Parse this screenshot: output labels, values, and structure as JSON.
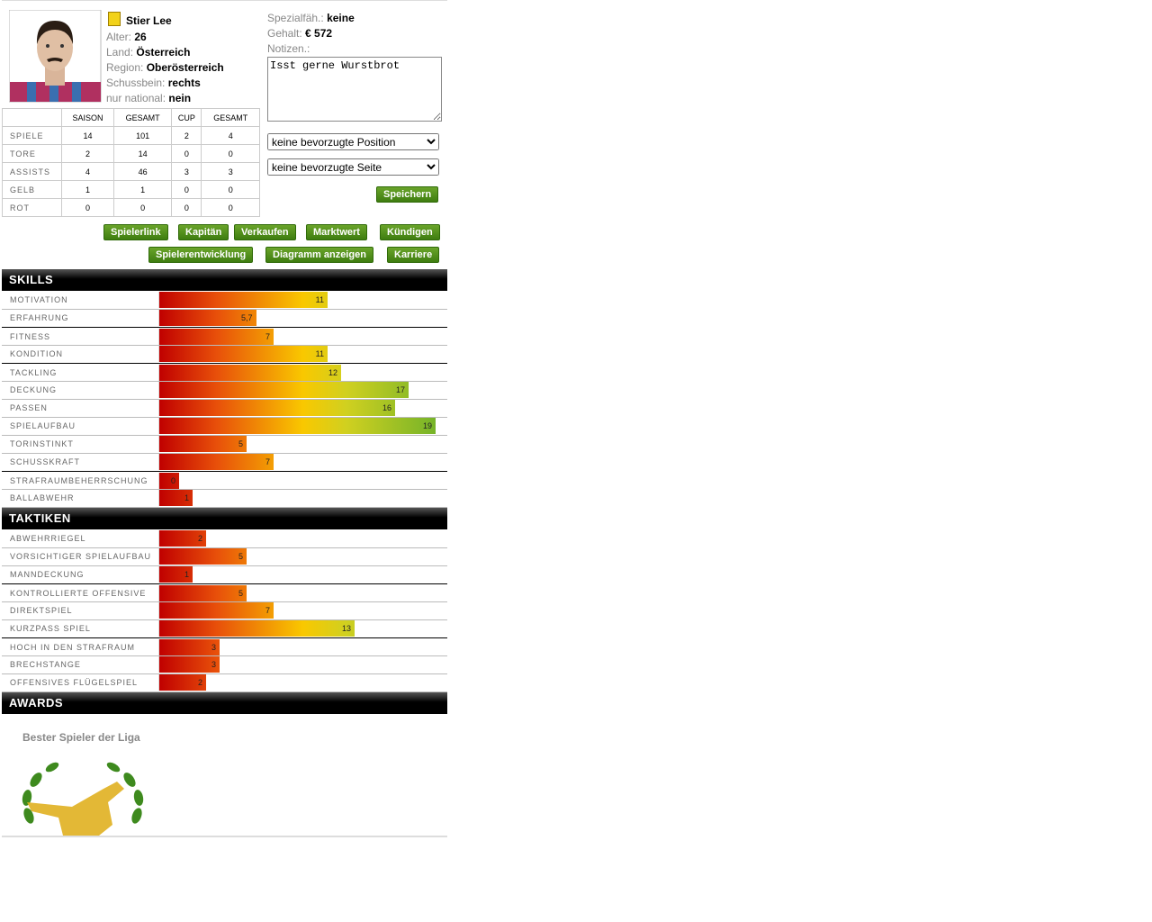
{
  "player": {
    "name": "Stier Lee",
    "info": [
      {
        "label": "Alter:",
        "value": "26"
      },
      {
        "label": "Land:",
        "value": "Österreich"
      },
      {
        "label": "Region:",
        "value": "Oberösterreich"
      },
      {
        "label": "Schussbein:",
        "value": "rechts"
      },
      {
        "label": "nur national:",
        "value": "nein"
      }
    ],
    "extra": [
      {
        "label": "Spezialfäh.:",
        "value": "keine"
      },
      {
        "label": "Gehalt:",
        "value": "€ 572"
      }
    ],
    "notes_label": "Notizen.:",
    "notes": "Isst gerne Wurstbrot",
    "position_select": "keine bevorzugte Position",
    "side_select": "keine bevorzugte Seite",
    "save": "Speichern"
  },
  "stats": {
    "headers": [
      "SAISON",
      "GESAMT",
      "CUP",
      "GESAMT"
    ],
    "rows": [
      {
        "label": "SPIELE",
        "values": [
          14,
          101,
          2,
          4
        ]
      },
      {
        "label": "TORE",
        "values": [
          2,
          14,
          0,
          0
        ]
      },
      {
        "label": "ASSISTS",
        "values": [
          4,
          46,
          3,
          3
        ]
      },
      {
        "label": "GELB",
        "values": [
          1,
          1,
          0,
          0
        ]
      },
      {
        "label": "ROT",
        "values": [
          0,
          0,
          0,
          0
        ]
      }
    ]
  },
  "buttons": [
    "Spielerlink",
    "Kapitän",
    "Verkaufen",
    "Marktwert",
    "Kündigen",
    "Spielerentwicklung",
    "Diagramm anzeigen",
    "Karriere"
  ],
  "skills": {
    "title": "SKILLS",
    "items": [
      {
        "name": "MOTIVATION",
        "value": 11
      },
      {
        "name": "ERFAHRUNG",
        "value": 5.7,
        "value_label": "5,7"
      },
      {
        "name": "FITNESS",
        "value": 7
      },
      {
        "name": "KONDITION",
        "value": 11
      },
      {
        "name": "TACKLING",
        "value": 12
      },
      {
        "name": "DECKUNG",
        "value": 17
      },
      {
        "name": "PASSEN",
        "value": 16
      },
      {
        "name": "SPIELAUFBAU",
        "value": 19
      },
      {
        "name": "TORINSTINKT",
        "value": 5
      },
      {
        "name": "SCHUSSKRAFT",
        "value": 7
      },
      {
        "name": "STRAFRAUMBEHERRSCHUNG",
        "value": 0
      },
      {
        "name": "BALLABWEHR",
        "value": 1
      }
    ]
  },
  "tactics": {
    "title": "TAKTIKEN",
    "items": [
      {
        "name": "ABWEHRRIEGEL",
        "value": 2
      },
      {
        "name": "VORSICHTIGER SPIELAUFBAU",
        "value": 5
      },
      {
        "name": "MANNDECKUNG",
        "value": 1
      },
      {
        "name": "KONTROLLIERTE OFFENSIVE",
        "value": 5
      },
      {
        "name": "DIREKTSPIEL",
        "value": 7
      },
      {
        "name": "KURZPASS SPIEL",
        "value": 13
      },
      {
        "name": "HOCH IN DEN STRAFRAUM",
        "value": 3
      },
      {
        "name": "BRECHSTANGE",
        "value": 3
      },
      {
        "name": "OFFENSIVES FLÜGELSPIEL",
        "value": 2
      }
    ]
  },
  "awards": {
    "title": "AWARDS",
    "items": [
      "Bester Spieler der Liga"
    ]
  }
}
